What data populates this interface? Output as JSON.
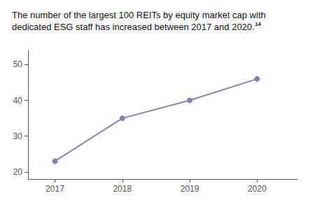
{
  "chart_data": {
    "type": "line",
    "title": "The number of the largest 100 REITs by equity market cap with dedicated ESG staff has increased between 2017 and 2020.",
    "annotations": [
      "14"
    ],
    "x": [
      2017,
      2018,
      2019,
      2020
    ],
    "values": [
      23,
      35,
      40,
      46
    ],
    "color": "#8880bb",
    "marker": "circle",
    "xlim": [
      2016.6,
      2020.6
    ],
    "xticks": [
      2017,
      2018,
      2019,
      2020
    ],
    "ylim": [
      18,
      54
    ],
    "yticks": [
      20,
      30,
      40,
      50
    ],
    "grid": false
  }
}
